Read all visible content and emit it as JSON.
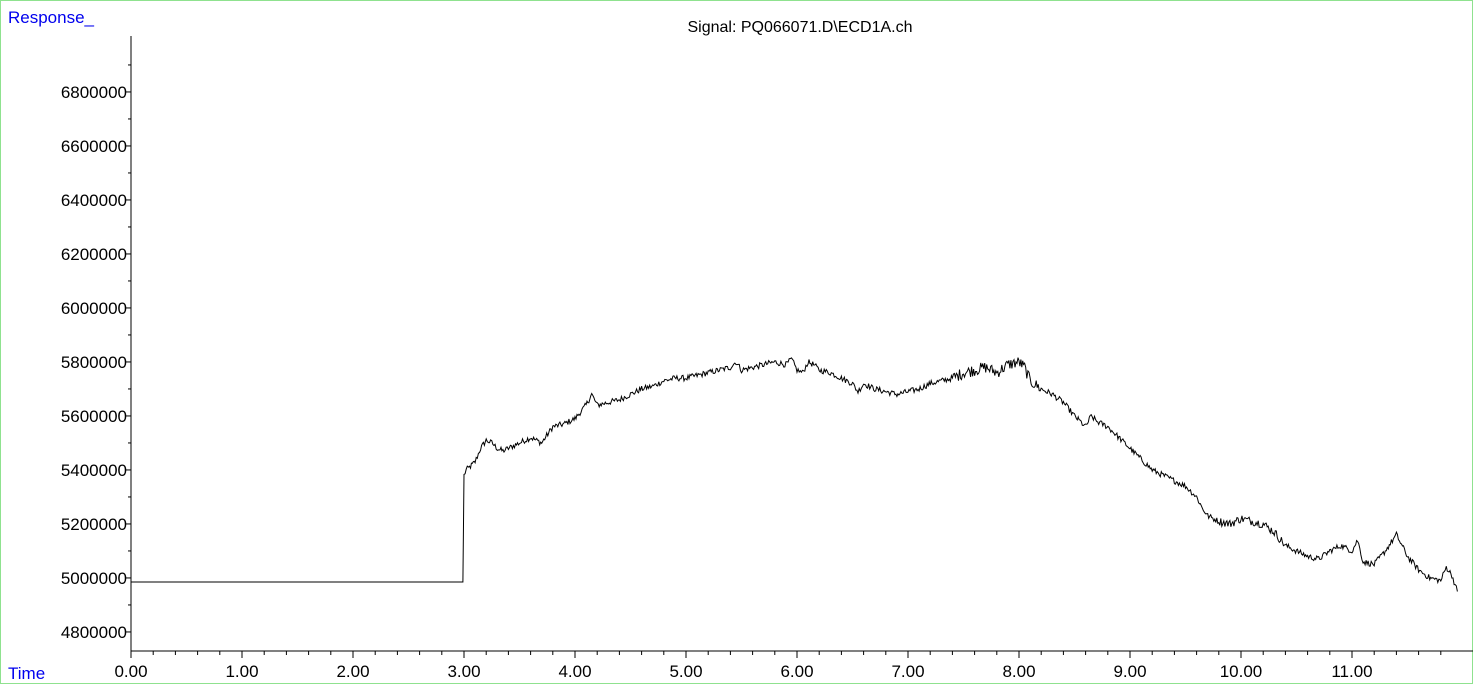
{
  "chart_data": {
    "type": "line",
    "title": "Signal: PQ066071.D\\ECD1A.ch",
    "ylabel": "Response_",
    "xlabel": "Time",
    "xlim": [
      0.0,
      11.95
    ],
    "ylim": [
      4750000,
      7000000
    ],
    "x_ticks": [
      "0.00",
      "1.00",
      "2.00",
      "3.00",
      "4.00",
      "5.00",
      "6.00",
      "7.00",
      "8.00",
      "9.00",
      "10.00",
      "11.00"
    ],
    "y_ticks": [
      "4800000",
      "5000000",
      "5200000",
      "5400000",
      "5600000",
      "5800000",
      "6000000",
      "6200000",
      "6400000",
      "6600000",
      "6800000"
    ],
    "grid": false,
    "series": [
      {
        "color": "#000000",
        "x": [
          0.0,
          2.99,
          3.0,
          3.02,
          3.05,
          3.1,
          3.15,
          3.2,
          3.25,
          3.3,
          3.35,
          3.4,
          3.5,
          3.6,
          3.7,
          3.8,
          3.9,
          4.0,
          4.1,
          4.15,
          4.2,
          4.3,
          4.4,
          4.5,
          4.6,
          4.7,
          4.8,
          4.9,
          5.0,
          5.1,
          5.2,
          5.3,
          5.4,
          5.45,
          5.5,
          5.6,
          5.7,
          5.8,
          5.9,
          5.95,
          6.0,
          6.05,
          6.1,
          6.15,
          6.2,
          6.3,
          6.4,
          6.5,
          6.55,
          6.6,
          6.7,
          6.8,
          6.9,
          7.0,
          7.1,
          7.2,
          7.3,
          7.4,
          7.5,
          7.6,
          7.7,
          7.8,
          7.9,
          8.0,
          8.05,
          8.1,
          8.2,
          8.3,
          8.4,
          8.5,
          8.55,
          8.6,
          8.65,
          8.7,
          8.8,
          8.9,
          9.0,
          9.1,
          9.2,
          9.3,
          9.4,
          9.5,
          9.6,
          9.65,
          9.7,
          9.8,
          9.9,
          10.0,
          10.1,
          10.2,
          10.3,
          10.4,
          10.5,
          10.6,
          10.7,
          10.8,
          10.9,
          11.0,
          11.05,
          11.1,
          11.2,
          11.3,
          11.4,
          11.5,
          11.6,
          11.7,
          11.8,
          11.85,
          11.9,
          11.95
        ],
        "y": [
          4985000,
          4985000,
          5380000,
          5400000,
          5410000,
          5430000,
          5480000,
          5510000,
          5500000,
          5480000,
          5470000,
          5480000,
          5500000,
          5520000,
          5500000,
          5560000,
          5570000,
          5590000,
          5640000,
          5680000,
          5640000,
          5650000,
          5660000,
          5680000,
          5700000,
          5710000,
          5730000,
          5740000,
          5740000,
          5750000,
          5760000,
          5770000,
          5780000,
          5800000,
          5770000,
          5780000,
          5790000,
          5800000,
          5790000,
          5810000,
          5770000,
          5760000,
          5800000,
          5790000,
          5770000,
          5760000,
          5740000,
          5720000,
          5690000,
          5720000,
          5700000,
          5690000,
          5680000,
          5690000,
          5700000,
          5720000,
          5730000,
          5740000,
          5760000,
          5770000,
          5780000,
          5760000,
          5790000,
          5800000,
          5780000,
          5730000,
          5700000,
          5680000,
          5650000,
          5600000,
          5580000,
          5560000,
          5600000,
          5580000,
          5560000,
          5520000,
          5480000,
          5440000,
          5400000,
          5380000,
          5360000,
          5340000,
          5300000,
          5260000,
          5230000,
          5210000,
          5200000,
          5220000,
          5210000,
          5200000,
          5170000,
          5120000,
          5100000,
          5080000,
          5070000,
          5100000,
          5120000,
          5100000,
          5140000,
          5060000,
          5050000,
          5100000,
          5160000,
          5080000,
          5030000,
          5000000,
          4990000,
          5040000,
          5010000,
          4950000
        ]
      }
    ]
  }
}
